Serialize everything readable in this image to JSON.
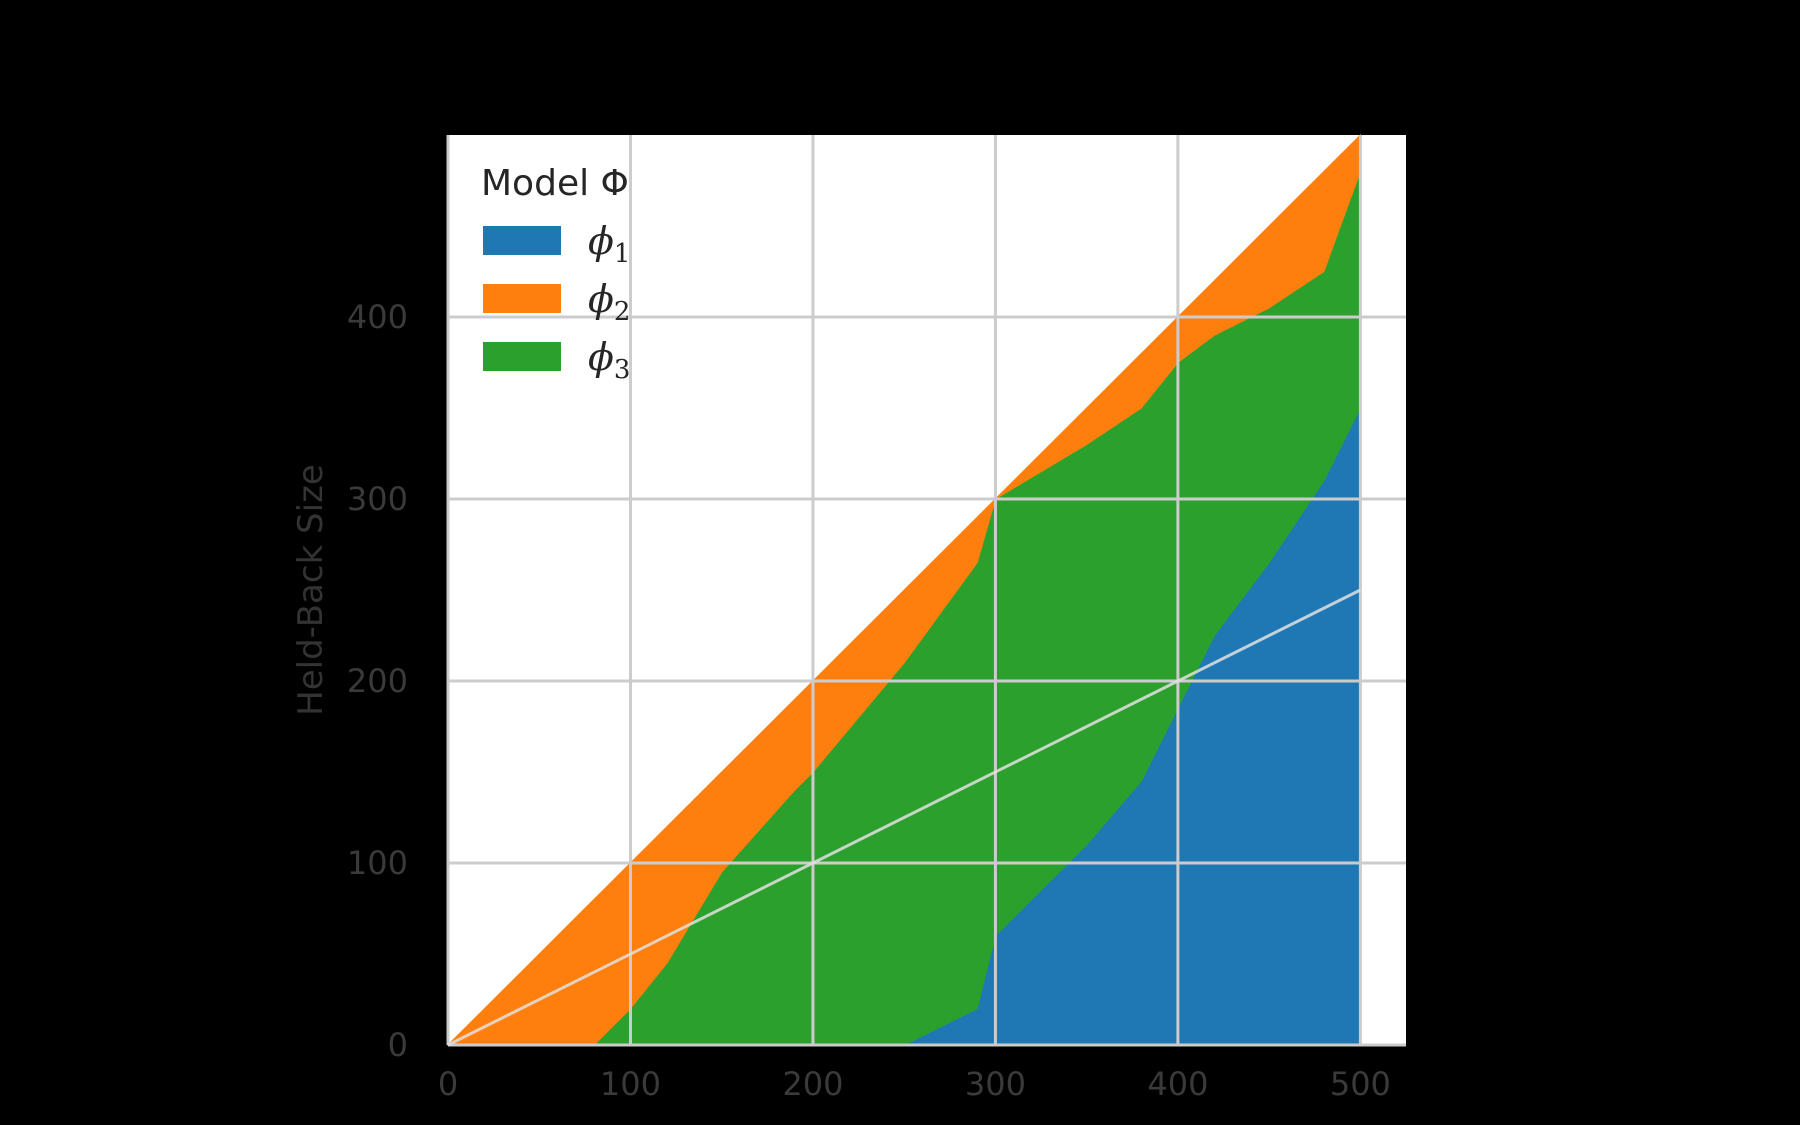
{
  "chart_data": {
    "type": "area",
    "title": "",
    "xlabel": "",
    "ylabel": "Held-Back Size",
    "xlim": [
      0,
      525
    ],
    "ylim": [
      0,
      500
    ],
    "x_ticks": [
      0,
      100,
      200,
      300,
      400,
      500
    ],
    "y_ticks": [
      0,
      100,
      200,
      300,
      400
    ],
    "grid": true,
    "legend": {
      "title": "Model Φ",
      "placement": "top-left"
    },
    "total_line": {
      "x": [
        0,
        500
      ],
      "y": [
        0,
        500
      ]
    },
    "reference_line": {
      "x": [
        0,
        500
      ],
      "y": [
        0,
        250
      ],
      "color": "#e0e0e0"
    },
    "x": [
      0,
      80,
      100,
      120,
      150,
      190,
      200,
      250,
      290,
      300,
      350,
      380,
      400,
      420,
      450,
      480,
      500
    ],
    "series": [
      {
        "name": "ϕ1",
        "label": "1",
        "color": "#1f77b4",
        "values": [
          0,
          0,
          0,
          0,
          0,
          0,
          0,
          0,
          20,
          60,
          110,
          145,
          185,
          225,
          265,
          310,
          350
        ]
      },
      {
        "name": "ϕ3",
        "label": "3",
        "color": "#2ca02c",
        "values": [
          0,
          0,
          20,
          45,
          95,
          140,
          150,
          210,
          245,
          240,
          220,
          205,
          190,
          165,
          140,
          115,
          130
        ]
      },
      {
        "name": "ϕ2",
        "label": "2",
        "color": "#ff7f0e",
        "values": [
          0,
          80,
          80,
          75,
          55,
          50,
          50,
          40,
          25,
          0,
          20,
          30,
          25,
          30,
          45,
          55,
          20
        ]
      }
    ],
    "legend_order": [
      "ϕ1",
      "ϕ2",
      "ϕ3"
    ]
  }
}
